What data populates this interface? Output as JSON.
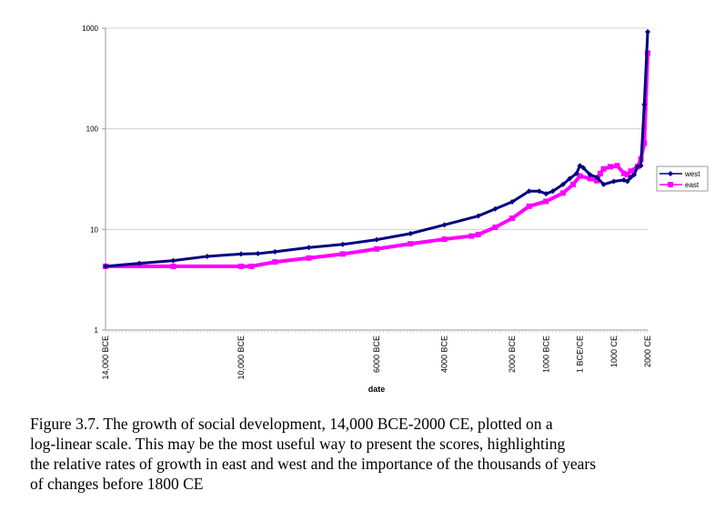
{
  "chart_data": {
    "type": "line",
    "title": "",
    "xlabel": "date",
    "ylabel": "",
    "y_scale": "log",
    "ylim": [
      1,
      1000
    ],
    "y_ticks": [
      "1",
      "10",
      "100",
      "1000"
    ],
    "xlim": [
      -14000,
      2000
    ],
    "x_tick_labels": [
      {
        "year": -14000,
        "label": "14,000 BCE"
      },
      {
        "year": -10000,
        "label": "10,000 BCE"
      },
      {
        "year": -6000,
        "label": "6000 BCE"
      },
      {
        "year": -4000,
        "label": "4000 BCE"
      },
      {
        "year": -2000,
        "label": "2000 BCE"
      },
      {
        "year": -1000,
        "label": "1000 BCE"
      },
      {
        "year": 0,
        "label": "1 BCE/CE"
      },
      {
        "year": 1000,
        "label": "1000 CE"
      },
      {
        "year": 2000,
        "label": "2000 CE"
      }
    ],
    "grid": "horizontal",
    "legend": "right",
    "series": [
      {
        "name": "west",
        "color": "#000080",
        "marker": "diamond",
        "x": [
          -14000,
          -13000,
          -12000,
          -11000,
          -10000,
          -9500,
          -9000,
          -8000,
          -7000,
          -6000,
          -5000,
          -4000,
          -3000,
          -2500,
          -2000,
          -1500,
          -1200,
          -1000,
          -800,
          -500,
          -300,
          -100,
          0,
          100,
          300,
          500,
          700,
          1000,
          1300,
          1400,
          1500,
          1600,
          1700,
          1800,
          1900,
          2000
        ],
        "y": [
          4.3,
          4.6,
          4.9,
          5.4,
          5.7,
          5.75,
          6.0,
          6.6,
          7.1,
          7.9,
          9.1,
          11.1,
          13.6,
          16,
          18.8,
          24,
          24,
          22.6,
          24,
          28,
          32,
          36,
          43,
          41,
          35,
          33,
          28,
          30,
          31,
          30,
          33,
          35,
          42,
          43,
          174,
          920
        ]
      },
      {
        "name": "east",
        "color": "#ff00ff",
        "marker": "square",
        "x": [
          -14000,
          -12000,
          -10000,
          -9700,
          -9000,
          -8000,
          -7000,
          -6000,
          -5000,
          -4000,
          -3200,
          -3000,
          -2500,
          -2000,
          -1500,
          -1000,
          -500,
          -200,
          0,
          300,
          500,
          600,
          700,
          900,
          1100,
          1300,
          1400,
          1500,
          1700,
          1800,
          1900,
          2000
        ],
        "y": [
          4.3,
          4.3,
          4.3,
          4.3,
          4.75,
          5.2,
          5.7,
          6.4,
          7.2,
          8.0,
          8.6,
          8.9,
          10.5,
          12.9,
          17,
          19,
          23,
          28,
          34,
          32,
          30.5,
          36,
          40,
          42,
          43,
          36,
          35,
          38,
          42,
          50,
          72,
          565
        ]
      }
    ]
  },
  "caption": {
    "lines": [
      "Figure 3.7.  The growth of social development, 14,000 BCE-2000 CE, plotted on a",
      "log-linear scale. This may be the most useful way to present the scores, highlighting",
      "the relative rates of growth in east and west and the importance of the thousands of years",
      "of changes before 1800 CE"
    ]
  }
}
